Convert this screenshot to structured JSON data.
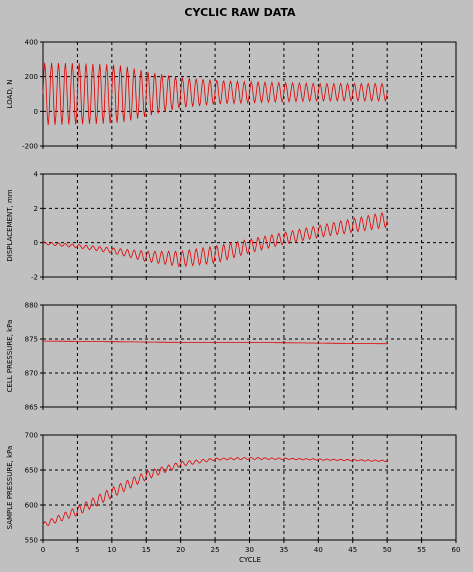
{
  "chart_data": {
    "type": "line",
    "title": "CYCLIC RAW DATA",
    "xlabel": "CYCLE",
    "xlim": [
      0,
      60
    ],
    "x_ticks": [
      "0",
      "5",
      "10",
      "15",
      "20",
      "25",
      "30",
      "35",
      "40",
      "45",
      "50",
      "55",
      "60"
    ],
    "grid": true,
    "line_color": "#e00000",
    "background": "#c0c0c0",
    "panels": [
      {
        "ylabel": "LOAD, N",
        "ylim": [
          -200,
          400
        ],
        "y_ticks": [
          "-200",
          "0",
          "200",
          "400"
        ],
        "series": [
          {
            "x": [
              0,
              5,
              10,
              12,
              15,
              20,
              25,
              30,
              35,
              40,
              45,
              50
            ],
            "upper": [
              280,
              278,
              270,
              260,
              230,
              195,
              180,
              170,
              165,
              160,
              160,
              160
            ],
            "lower": [
              -80,
              -75,
              -70,
              -60,
              -30,
              20,
              40,
              50,
              55,
              60,
              60,
              60
            ],
            "cycles": 50
          }
        ]
      },
      {
        "ylabel": "DISPLACEMENT, mm",
        "ylim": [
          -2,
          4
        ],
        "y_ticks": [
          "-2",
          "0",
          "2",
          "4"
        ],
        "series": [
          {
            "x": [
              0,
              5,
              10,
              15,
              20,
              25,
              30,
              35,
              40,
              45,
              50
            ],
            "upper": [
              0.05,
              -0.1,
              -0.3,
              -0.5,
              -0.5,
              -0.2,
              0.2,
              0.6,
              1.0,
              1.4,
              1.8
            ],
            "lower": [
              -0.1,
              -0.3,
              -0.6,
              -1.1,
              -1.4,
              -1.2,
              -0.6,
              -0.1,
              0.3,
              0.6,
              0.9
            ],
            "cycles": 50
          }
        ]
      },
      {
        "ylabel": "CELL PRESSURE, kPa",
        "ylim": [
          865,
          880
        ],
        "y_ticks": [
          "865",
          "870",
          "875",
          "880"
        ],
        "series": [
          {
            "x": [
              0,
              10,
              20,
              30,
              40,
              50
            ],
            "upper": [
              874.8,
              874.7,
              874.6,
              874.6,
              874.5,
              874.4
            ],
            "lower": [
              874.6,
              874.5,
              874.4,
              874.4,
              874.3,
              874.2
            ],
            "cycles": 0
          }
        ]
      },
      {
        "ylabel": "SAMPLE PRESSURE, kPa",
        "ylim": [
          550,
          700
        ],
        "y_ticks": [
          "550",
          "600",
          "650",
          "700"
        ],
        "series": [
          {
            "x": [
              0,
              5,
              10,
              15,
              20,
              25,
              30,
              35,
              40,
              45,
              50
            ],
            "upper": [
              575,
              598,
              625,
              648,
              662,
              667,
              668,
              667,
              666,
              665,
              664
            ],
            "lower": [
              568,
              585,
              610,
              636,
              655,
              664,
              665,
              665,
              664,
              663,
              662
            ],
            "cycles": 50
          }
        ]
      }
    ]
  }
}
